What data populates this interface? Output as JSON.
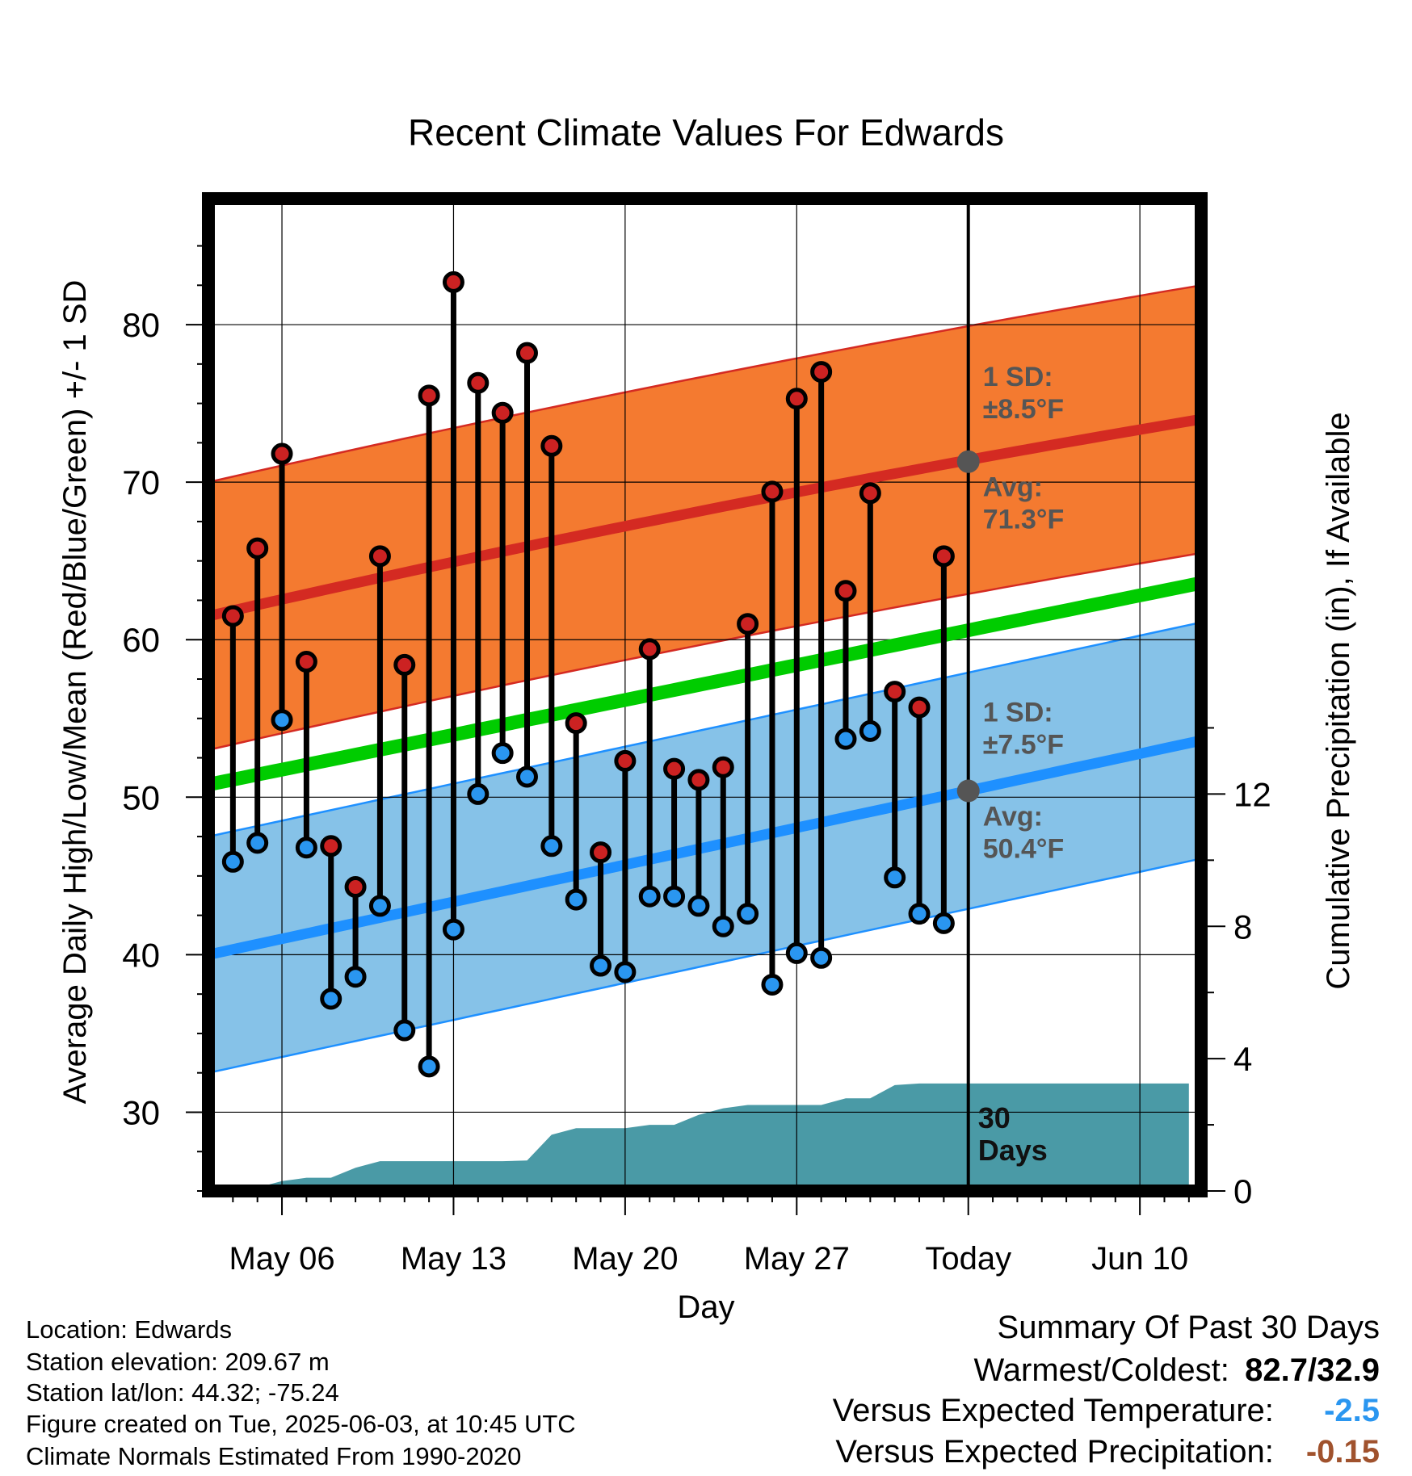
{
  "chart_data": {
    "type": "line",
    "title": "Recent Climate Values For Edwards",
    "xlabel": "Day",
    "ylabel": "Average Daily High/Low/Mean (Red/Blue/Green) +/- 1 SD",
    "y2label": "Cumulative Precipitation (in), If Available",
    "ylim": [
      25,
      88
    ],
    "y2lim": [
      0,
      30
    ],
    "yticks": [
      30,
      40,
      50,
      60,
      70,
      80
    ],
    "y2ticks": [
      0,
      4,
      8,
      12
    ],
    "xticks": [
      {
        "day": 6,
        "label": "May 06"
      },
      {
        "day": 13,
        "label": "May 13"
      },
      {
        "day": 20,
        "label": "May 20"
      },
      {
        "day": 27,
        "label": "May 27"
      },
      {
        "day": 34,
        "label": "Today"
      },
      {
        "day": 41,
        "label": "Jun 10"
      }
    ],
    "today_label": "30\nDays",
    "normals": {
      "high_mean": {
        "start": 61.5,
        "end": 74.0,
        "color": "#d42a22"
      },
      "high_sd_band": {
        "sd": 8.5,
        "fill": "#f47a30"
      },
      "mean": {
        "start": 50.8,
        "end": 63.6,
        "color": "#00cc00"
      },
      "low_mean": {
        "start": 40.0,
        "end": 53.6,
        "color": "#1e90ff"
      },
      "low_sd_band": {
        "sd": 7.5,
        "fill": "#86c2e8"
      }
    },
    "annotations": {
      "high_sd": "1 SD:\n±8.5°F",
      "high_avg": "Avg:\n71.3°F",
      "low_sd": "1 SD:\n±7.5°F",
      "low_avg": "Avg:\n50.4°F",
      "today_high_avg": 71.3,
      "today_low_avg": 50.4
    },
    "series": [
      {
        "name": "High",
        "color": "#cc2222",
        "x": [
          4,
          5,
          6,
          7,
          8,
          9,
          10,
          11,
          12,
          13,
          14,
          15,
          16,
          17,
          18,
          19,
          20,
          21,
          22,
          23,
          24,
          25,
          26,
          27,
          28,
          29,
          30,
          31,
          32,
          33
        ],
        "values": [
          61.5,
          65.8,
          71.8,
          58.6,
          46.9,
          44.3,
          65.3,
          58.4,
          75.5,
          82.7,
          76.3,
          74.4,
          78.2,
          72.3,
          54.7,
          46.5,
          52.3,
          59.4,
          51.8,
          51.1,
          51.9,
          61.0,
          69.4,
          75.3,
          77.0,
          63.1,
          69.3,
          56.7,
          55.7,
          65.3
        ]
      },
      {
        "name": "Low",
        "color": "#2a96f0",
        "x": [
          4,
          5,
          6,
          7,
          8,
          9,
          10,
          11,
          12,
          13,
          14,
          15,
          16,
          17,
          18,
          19,
          20,
          21,
          22,
          23,
          24,
          25,
          26,
          27,
          28,
          29,
          30,
          31,
          32,
          33
        ],
        "values": [
          45.9,
          47.1,
          54.9,
          46.8,
          37.2,
          38.6,
          43.1,
          35.2,
          32.9,
          41.6,
          50.2,
          52.8,
          51.3,
          46.9,
          43.5,
          39.3,
          38.9,
          43.7,
          43.7,
          43.1,
          41.8,
          42.6,
          38.1,
          40.1,
          39.8,
          53.7,
          54.2,
          44.9,
          42.6,
          42.0
        ]
      },
      {
        "name": "Cumulative Precipitation",
        "color": "#4a9aa6",
        "x": [
          4,
          5,
          5.5,
          6,
          6.5,
          7,
          8,
          9,
          10,
          11,
          12,
          13,
          14,
          15,
          16,
          17,
          18,
          19,
          20,
          21,
          22,
          23,
          24,
          25,
          26,
          27,
          28,
          29,
          30,
          31,
          32,
          33,
          34,
          35,
          36,
          37,
          38,
          39,
          40,
          41,
          42,
          43
        ],
        "values": [
          0,
          0,
          0.2,
          0.3,
          0.35,
          0.4,
          0.4,
          0.7,
          0.9,
          0.9,
          0.9,
          0.9,
          0.9,
          0.9,
          0.92,
          1.7,
          1.9,
          1.9,
          1.9,
          2.0,
          2.0,
          2.3,
          2.5,
          2.6,
          2.6,
          2.6,
          2.6,
          2.8,
          2.8,
          3.2,
          3.25,
          3.25,
          3.25,
          3.25,
          3.25,
          3.25,
          3.25,
          3.25,
          3.25,
          3.25,
          3.25,
          3.25
        ]
      }
    ]
  },
  "info": {
    "location": "Location: Edwards",
    "elevation": "Station elevation: 209.67 m",
    "latlon": "Station lat/lon: 44.32; -75.24",
    "created": "Figure created on Tue, 2025-06-03, at 10:45 UTC",
    "normals_note": "Climate Normals Estimated From 1990-2020"
  },
  "summary": {
    "title": "Summary Of Past 30 Days",
    "warm_cold_label": "Warmest/Coldest:",
    "warm_cold_value": "82.7/32.9",
    "temp_label": "Versus Expected Temperature:",
    "temp_value": "-2.5",
    "temp_color": "#2a96f0",
    "precip_label": "Versus Expected Precipitation:",
    "precip_value": "-0.15",
    "precip_color": "#a0522d"
  }
}
